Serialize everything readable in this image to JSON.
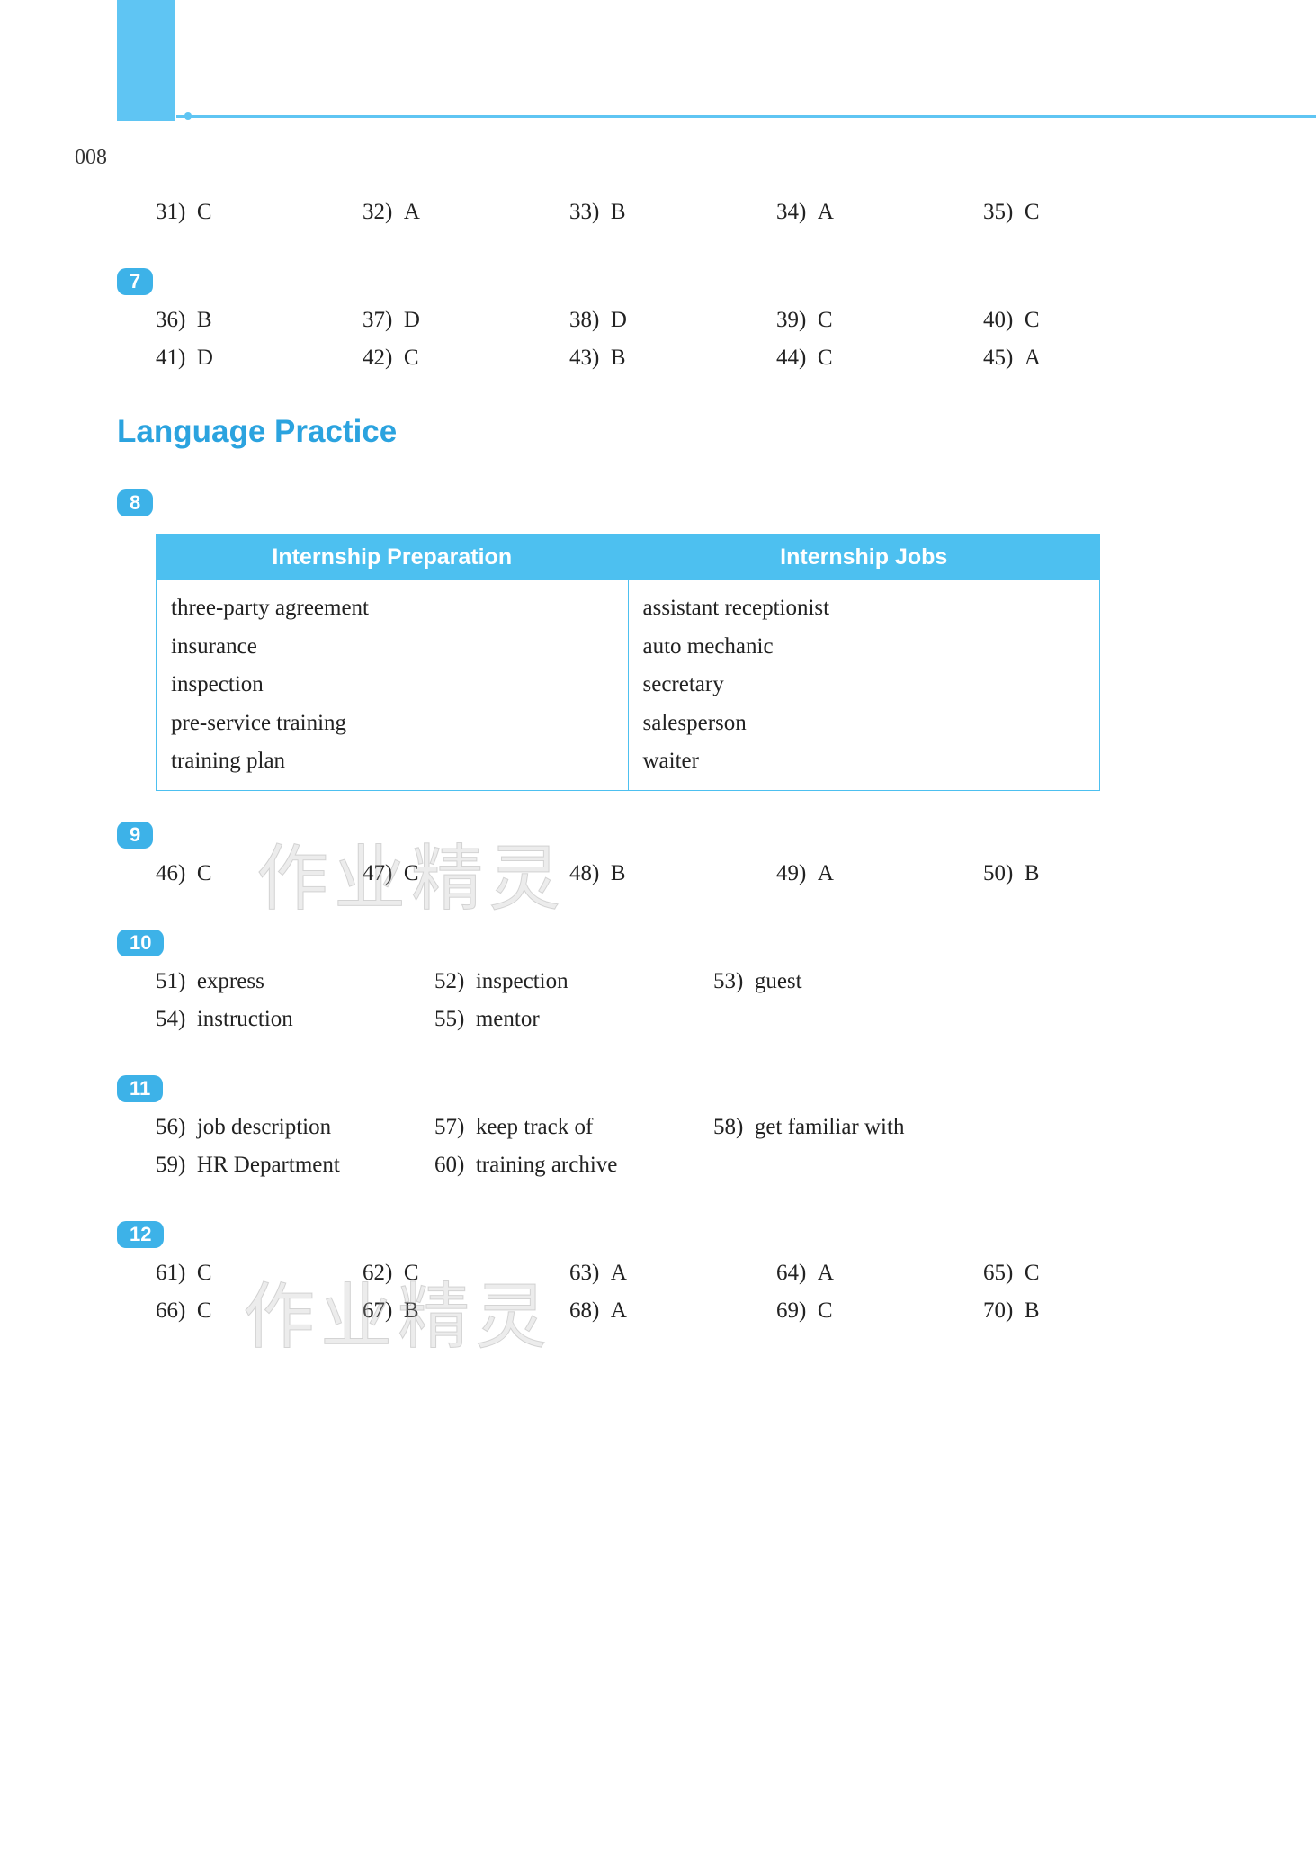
{
  "page_number": "008",
  "section6_row": [
    {
      "n": "31)",
      "a": "C"
    },
    {
      "n": "32)",
      "a": "A"
    },
    {
      "n": "33)",
      "a": "B"
    },
    {
      "n": "34)",
      "a": "A"
    },
    {
      "n": "35)",
      "a": "C"
    }
  ],
  "badges": {
    "b7": "7",
    "b8": "8",
    "b9": "9",
    "b10": "10",
    "b11": "11",
    "b12": "12"
  },
  "section7_rows": [
    [
      {
        "n": "36)",
        "a": "B"
      },
      {
        "n": "37)",
        "a": "D"
      },
      {
        "n": "38)",
        "a": "D"
      },
      {
        "n": "39)",
        "a": "C"
      },
      {
        "n": "40)",
        "a": "C"
      }
    ],
    [
      {
        "n": "41)",
        "a": "D"
      },
      {
        "n": "42)",
        "a": "C"
      },
      {
        "n": "43)",
        "a": "B"
      },
      {
        "n": "44)",
        "a": "C"
      },
      {
        "n": "45)",
        "a": "A"
      }
    ]
  ],
  "section_title": "Language Practice",
  "table": {
    "header_left": "Internship Preparation",
    "header_right": "Internship Jobs",
    "left_items": [
      "three-party agreement",
      "insurance",
      "inspection",
      "pre-service training",
      "training plan"
    ],
    "right_items": [
      "assistant receptionist",
      "auto mechanic",
      "secretary",
      "salesperson",
      "waiter"
    ]
  },
  "section9_row": [
    {
      "n": "46)",
      "a": "C"
    },
    {
      "n": "47)",
      "a": "C"
    },
    {
      "n": "48)",
      "a": "B"
    },
    {
      "n": "49)",
      "a": "A"
    },
    {
      "n": "50)",
      "a": "B"
    }
  ],
  "section10_rows": [
    [
      {
        "n": "51)",
        "a": "express"
      },
      {
        "n": "52)",
        "a": "inspection"
      },
      {
        "n": "53)",
        "a": "guest"
      }
    ],
    [
      {
        "n": "54)",
        "a": "instruction"
      },
      {
        "n": "55)",
        "a": "mentor"
      }
    ]
  ],
  "section11_rows": [
    [
      {
        "n": "56)",
        "a": "job description"
      },
      {
        "n": "57)",
        "a": "keep track of"
      },
      {
        "n": "58)",
        "a": "get familiar with"
      }
    ],
    [
      {
        "n": "59)",
        "a": "HR Department"
      },
      {
        "n": "60)",
        "a": "training archive"
      }
    ]
  ],
  "section12_rows": [
    [
      {
        "n": "61)",
        "a": "C"
      },
      {
        "n": "62)",
        "a": "C"
      },
      {
        "n": "63)",
        "a": "A"
      },
      {
        "n": "64)",
        "a": "A"
      },
      {
        "n": "65)",
        "a": "C"
      }
    ],
    [
      {
        "n": "66)",
        "a": "C"
      },
      {
        "n": "67)",
        "a": "B"
      },
      {
        "n": "68)",
        "a": "A"
      },
      {
        "n": "69)",
        "a": "C"
      },
      {
        "n": "70)",
        "a": "B"
      }
    ]
  ],
  "watermark_text": "作业精灵",
  "colors": {
    "accent": "#5fc5f3",
    "badge": "#3db2e8",
    "table_header": "#4dc0f0",
    "title": "#2ba3df",
    "text": "#222222",
    "bg": "#ffffff"
  }
}
